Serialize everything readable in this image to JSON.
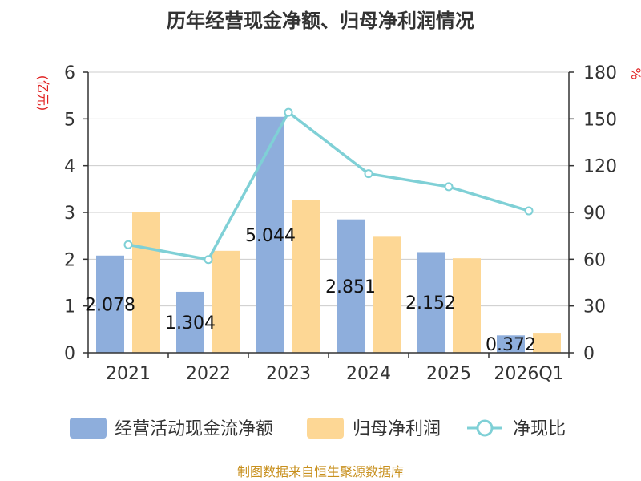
{
  "chart_data": {
    "type": "bar",
    "title": "历年经营现金净额、归母净利润情况",
    "categories": [
      "2021",
      "2022",
      "2023",
      "2024",
      "2025",
      "2026Q1"
    ],
    "series": [
      {
        "name": "经营活动现金流净额",
        "type": "bar",
        "axis": "left",
        "color": "#8eaedc",
        "values": [
          2.078,
          1.304,
          5.044,
          2.851,
          2.152,
          0.372
        ],
        "labels": [
          "2.078",
          "1.304",
          "5.044",
          "2.851",
          "2.152",
          "0.372"
        ]
      },
      {
        "name": "归母净利润",
        "type": "bar",
        "axis": "left",
        "color": "#fdd795",
        "values": [
          3.0,
          2.18,
          3.27,
          2.48,
          2.02,
          0.41
        ]
      },
      {
        "name": "净现比",
        "type": "line",
        "axis": "right",
        "color": "#7fd0d6",
        "values": [
          69.3,
          59.8,
          154.2,
          114.9,
          106.5,
          91.0
        ]
      }
    ],
    "ylabel_left": "(亿元)",
    "ylabel_right": "%",
    "ylim_left": [
      0,
      6
    ],
    "ylim_right": [
      0,
      180
    ],
    "yticks_left": [
      "0",
      "1",
      "2",
      "3",
      "4",
      "5",
      "6"
    ],
    "yticks_right": [
      "0",
      "30",
      "60",
      "90",
      "120",
      "150",
      "180"
    ],
    "grid": true,
    "legend_position": "bottom"
  },
  "source": "制图数据来自恒生聚源数据库"
}
